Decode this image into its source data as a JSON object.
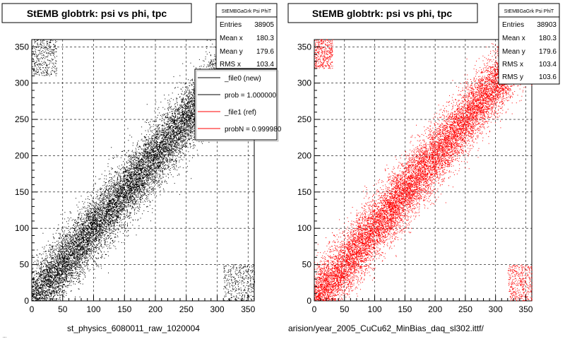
{
  "page": {
    "bottom_left_caption": "...",
    "footer_left": "st_physics_6080011_raw_1020004",
    "footer_right": "arision/year_2005_CuCu62_MinBias_daq_sl302.ittf/"
  },
  "colors": {
    "new_file": "#000000",
    "ref_file": "#ff0000",
    "background": "#ffffff"
  },
  "chart_data": [
    {
      "type": "scatter",
      "title": "StEMB globtrk: psi vs phi, tpc",
      "xlabel": "",
      "ylabel": "",
      "xlim": [
        0,
        360
      ],
      "ylim": [
        0,
        360
      ],
      "x_ticks": [
        0,
        50,
        100,
        150,
        200,
        250,
        300,
        350
      ],
      "y_ticks": [
        0,
        50,
        100,
        150,
        200,
        250,
        300,
        350
      ],
      "grid": true,
      "marker_color": "#000000",
      "stats_box": {
        "title": "StEMBGaGrk Psi PhiT",
        "entries_label": "Entries",
        "entries": "38905",
        "mean_x_label": "Mean x",
        "mean_x": "180.3",
        "mean_y_label": "Mean y",
        "mean_y": "179.6",
        "rms_x_label": "RMS x",
        "rms_x": "103.4"
      },
      "legend": {
        "placement": "top-right",
        "entries": [
          {
            "label": "_file0 (new)",
            "color": "#000000"
          },
          {
            "label": "prob = 1.000000",
            "color": "#000000"
          },
          {
            "label": "_file1 (ref)",
            "color": "#ff0000"
          },
          {
            "label": "probN = 0.999980",
            "color": "#ff0000"
          }
        ]
      },
      "distribution": {
        "description": "points concentrated along diagonal y ~ x with spread, plus corner clusters",
        "diagonal_offset_sd": 22,
        "corner_clusters": [
          {
            "x": [
              0,
              40
            ],
            "y": [
              310,
              360
            ]
          },
          {
            "x": [
              310,
              360
            ],
            "y": [
              0,
              50
            ]
          }
        ]
      }
    },
    {
      "type": "scatter",
      "title": "StEMB globtrk: psi vs phi, tpc",
      "xlabel": "",
      "ylabel": "",
      "xlim": [
        0,
        360
      ],
      "ylim": [
        0,
        360
      ],
      "x_ticks": [
        0,
        50,
        100,
        150,
        200,
        250,
        300,
        350
      ],
      "y_ticks": [
        0,
        50,
        100,
        150,
        200,
        250,
        300,
        350
      ],
      "grid": true,
      "marker_color": "#ff0000",
      "stats_box": {
        "title": "StEMBGaGrk Psi PhiT",
        "entries_label": "Entries",
        "entries": "38903",
        "mean_x_label": "Mean x",
        "mean_x": "180.3",
        "mean_y_label": "Mean y",
        "mean_y": "179.6",
        "rms_x_label": "RMS x",
        "rms_x": "103.4",
        "rms_y_label": "RMS y",
        "rms_y": "103.6"
      },
      "distribution": {
        "description": "points concentrated along diagonal y ~ x with spread, plus corner clusters",
        "diagonal_offset_sd": 22,
        "corner_clusters": [
          {
            "x": [
              0,
              30
            ],
            "y": [
              320,
              360
            ]
          },
          {
            "x": [
              320,
              360
            ],
            "y": [
              0,
              50
            ]
          }
        ]
      }
    }
  ]
}
